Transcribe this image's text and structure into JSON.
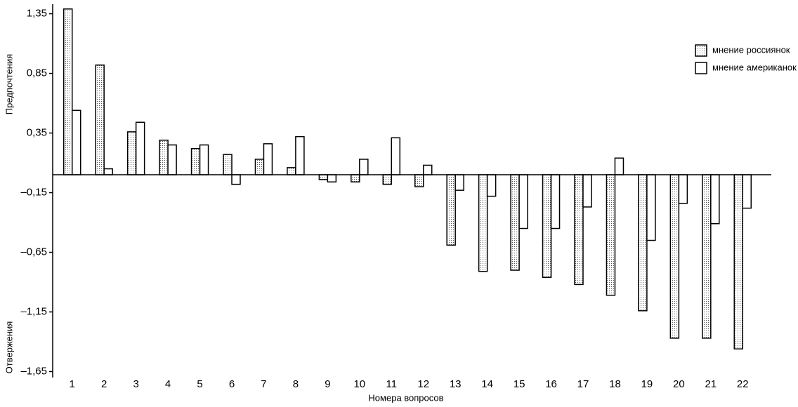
{
  "chart_data": {
    "type": "bar",
    "y_label_top": "Предпочтения",
    "y_label_bottom": "Отвержения",
    "x_label": "Номера вопросов",
    "categories": [
      "1",
      "2",
      "3",
      "4",
      "5",
      "6",
      "7",
      "8",
      "9",
      "10",
      "11",
      "12",
      "13",
      "14",
      "15",
      "16",
      "17",
      "18",
      "19",
      "20",
      "21",
      "22"
    ],
    "series": [
      {
        "name": "мнение россиянок",
        "color": "#d8d8d8",
        "values": [
          1.39,
          0.92,
          0.36,
          0.29,
          0.22,
          0.17,
          0.13,
          0.06,
          -0.04,
          -0.06,
          -0.08,
          -0.1,
          -0.59,
          -0.81,
          -0.8,
          -0.86,
          -0.92,
          -1.01,
          -1.14,
          -1.37,
          -1.37,
          -1.46
        ]
      },
      {
        "name": "мнение американок",
        "color": "#ffffff",
        "values": [
          0.54,
          0.05,
          0.44,
          0.25,
          0.25,
          -0.08,
          0.26,
          0.32,
          -0.06,
          0.13,
          0.31,
          0.08,
          -0.13,
          -0.18,
          -0.45,
          -0.45,
          -0.27,
          0.14,
          -0.55,
          -0.24,
          -0.41,
          -0.28
        ]
      }
    ],
    "ylim": [
      -1.7,
      1.43
    ],
    "yticks": [
      {
        "value": 1.35,
        "label": "1,35"
      },
      {
        "value": 0.85,
        "label": "0,85"
      },
      {
        "value": 0.35,
        "label": "0,35"
      },
      {
        "value": -0.15,
        "label": "–0,15"
      },
      {
        "value": -0.65,
        "label": "–0,65"
      },
      {
        "value": -1.15,
        "label": "–1,15"
      },
      {
        "value": -1.65,
        "label": "–1,65"
      }
    ],
    "legend": "upper right",
    "grid": false
  }
}
